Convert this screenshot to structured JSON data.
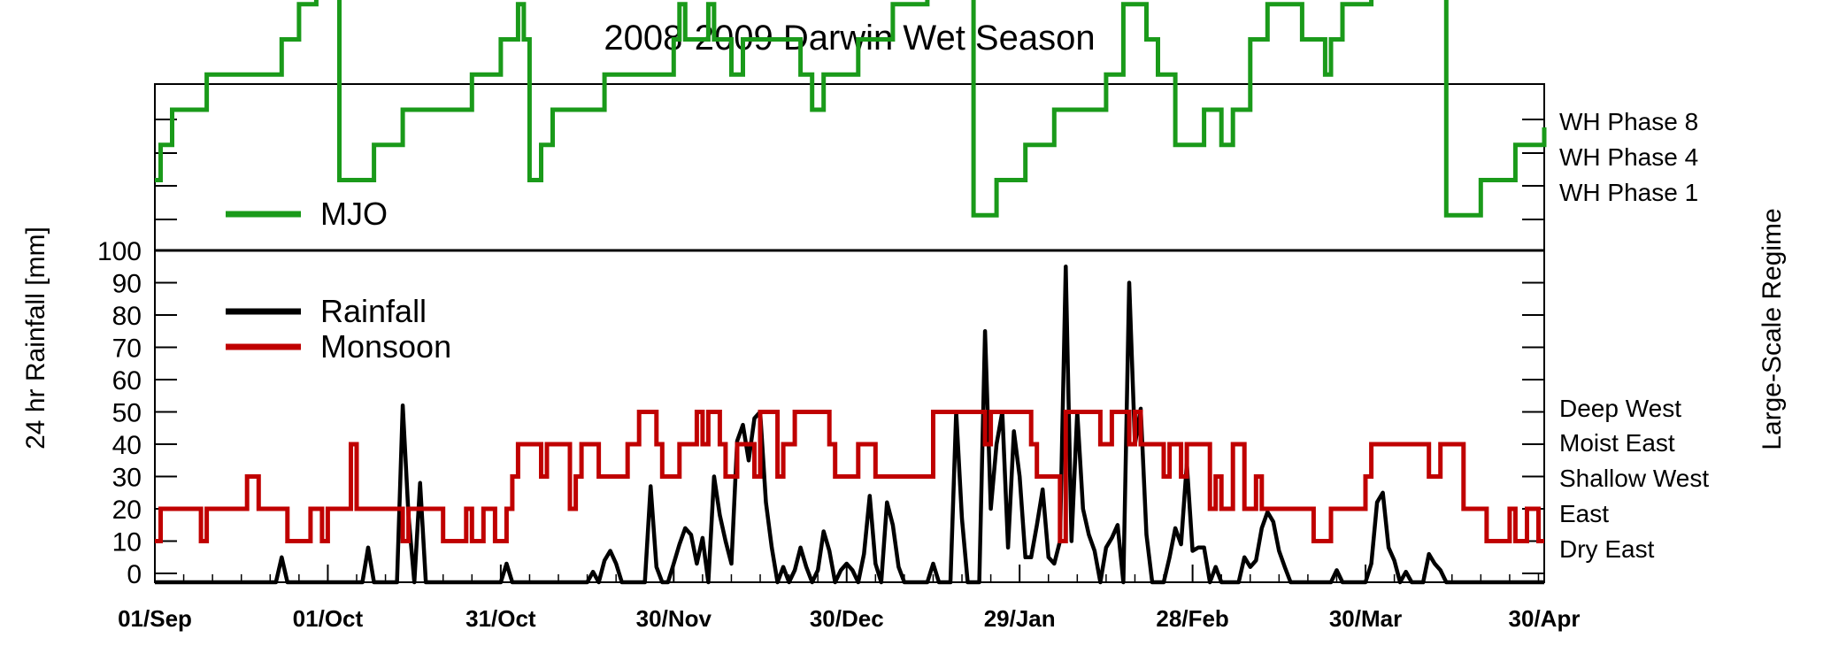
{
  "chart_data": {
    "type": "line",
    "title": "2008-2009 Darwin Wet Season",
    "ylabel": "24 hr Rainfall [mm]",
    "right_label": "Large-Scale Regime",
    "x_ticks": [
      "01/Sep",
      "01/Oct",
      "31/Oct",
      "30/Nov",
      "30/Dec",
      "29/Jan",
      "28/Feb",
      "30/Mar",
      "30/Apr"
    ],
    "x_tick_days": [
      0,
      30,
      60,
      90,
      120,
      150,
      180,
      210,
      241
    ],
    "xlim": [
      0,
      241
    ],
    "y_ticks": [
      "0",
      "10",
      "20",
      "30",
      "40",
      "50",
      "60",
      "70",
      "80",
      "90",
      "100"
    ],
    "ylim": [
      0,
      100
    ],
    "legend": {
      "mjo": "MJO",
      "rainfall": "Rainfall",
      "monsoon": "Monsoon"
    },
    "mjo_labels": [
      "WH Phase 8",
      "WH Phase 4",
      "WH Phase 1"
    ],
    "regime_labels": [
      "Deep West",
      "Moist East",
      "Shallow West",
      "East",
      "Dry East"
    ],
    "colors": {
      "mjo": "#1a9a1a",
      "rainfall": "#000000",
      "monsoon": "#c00000"
    },
    "series": [
      {
        "name": "Rainfall",
        "points": [
          [
            0,
            0
          ],
          [
            21,
            0
          ],
          [
            22,
            5
          ],
          [
            23,
            0
          ],
          [
            36,
            0
          ],
          [
            37,
            8
          ],
          [
            38,
            0
          ],
          [
            42,
            0
          ],
          [
            43,
            52
          ],
          [
            44,
            18
          ],
          [
            45,
            0
          ],
          [
            46,
            28
          ],
          [
            47,
            0
          ],
          [
            60,
            0
          ],
          [
            61,
            3
          ],
          [
            62,
            0
          ],
          [
            75,
            0
          ],
          [
            76,
            0.5
          ],
          [
            77,
            0
          ],
          [
            78,
            4
          ],
          [
            79,
            7
          ],
          [
            80,
            3
          ],
          [
            81,
            0
          ],
          [
            85,
            0
          ],
          [
            86,
            27
          ],
          [
            87,
            2
          ],
          [
            88,
            0
          ],
          [
            89,
            0
          ],
          [
            90,
            3
          ],
          [
            91,
            9
          ],
          [
            92,
            14
          ],
          [
            93,
            12
          ],
          [
            94,
            3
          ],
          [
            95,
            11
          ],
          [
            96,
            0
          ],
          [
            97,
            30
          ],
          [
            98,
            18
          ],
          [
            99,
            10
          ],
          [
            100,
            3
          ],
          [
            101,
            41
          ],
          [
            102,
            46
          ],
          [
            103,
            35
          ],
          [
            104,
            48
          ],
          [
            105,
            50
          ],
          [
            106,
            22
          ],
          [
            107,
            8
          ],
          [
            108,
            0
          ],
          [
            109,
            2
          ],
          [
            110,
            0
          ],
          [
            111,
            1
          ],
          [
            112,
            8
          ],
          [
            113,
            2
          ],
          [
            114,
            0
          ],
          [
            115,
            1
          ],
          [
            116,
            13
          ],
          [
            117,
            7
          ],
          [
            118,
            0
          ],
          [
            119,
            1
          ],
          [
            120,
            3
          ],
          [
            121,
            1
          ],
          [
            122,
            0
          ],
          [
            123,
            6
          ],
          [
            124,
            24
          ],
          [
            125,
            3
          ],
          [
            126,
            0
          ],
          [
            127,
            22
          ],
          [
            128,
            15
          ],
          [
            129,
            2
          ],
          [
            130,
            0
          ],
          [
            134,
            0
          ],
          [
            135,
            3
          ],
          [
            136,
            0
          ],
          [
            138,
            0
          ],
          [
            139,
            50
          ],
          [
            140,
            17
          ],
          [
            141,
            0
          ],
          [
            143,
            0
          ],
          [
            144,
            75
          ],
          [
            145,
            20
          ],
          [
            146,
            40
          ],
          [
            147,
            50
          ],
          [
            148,
            8
          ],
          [
            149,
            44
          ],
          [
            150,
            30
          ],
          [
            151,
            5
          ],
          [
            152,
            5
          ],
          [
            153,
            15
          ],
          [
            154,
            26
          ],
          [
            155,
            5
          ],
          [
            156,
            3
          ],
          [
            157,
            10
          ],
          [
            158,
            95
          ],
          [
            159,
            10
          ],
          [
            160,
            50
          ],
          [
            161,
            20
          ],
          [
            162,
            12
          ],
          [
            163,
            7
          ],
          [
            164,
            0
          ],
          [
            165,
            8
          ],
          [
            166,
            11
          ],
          [
            167,
            15
          ],
          [
            168,
            0
          ],
          [
            169,
            90
          ],
          [
            170,
            40
          ],
          [
            171,
            51
          ],
          [
            172,
            12
          ],
          [
            173,
            0
          ],
          [
            175,
            0
          ],
          [
            176,
            5
          ],
          [
            177,
            14
          ],
          [
            178,
            9
          ],
          [
            179,
            34
          ],
          [
            180,
            7
          ],
          [
            181,
            8
          ],
          [
            182,
            8
          ],
          [
            183,
            0
          ],
          [
            184,
            2
          ],
          [
            185,
            0
          ],
          [
            188,
            0
          ],
          [
            189,
            5
          ],
          [
            190,
            2
          ],
          [
            191,
            4
          ],
          [
            192,
            14
          ],
          [
            193,
            19
          ],
          [
            194,
            16
          ],
          [
            195,
            7
          ],
          [
            196,
            2
          ],
          [
            197,
            0
          ],
          [
            204,
            0
          ],
          [
            205,
            1
          ],
          [
            206,
            0
          ],
          [
            210,
            0
          ],
          [
            211,
            3
          ],
          [
            212,
            22
          ],
          [
            213,
            25
          ],
          [
            214,
            8
          ],
          [
            215,
            4
          ],
          [
            216,
            0
          ],
          [
            217,
            0.5
          ],
          [
            218,
            0
          ],
          [
            220,
            0
          ],
          [
            221,
            6
          ],
          [
            222,
            3
          ],
          [
            223,
            1
          ],
          [
            224,
            0
          ],
          [
            241,
            0
          ]
        ]
      },
      {
        "name": "Monsoon",
        "points": [
          [
            0,
            10
          ],
          [
            1,
            20
          ],
          [
            8,
            10
          ],
          [
            9,
            20
          ],
          [
            16,
            30
          ],
          [
            18,
            20
          ],
          [
            23,
            10
          ],
          [
            27,
            20
          ],
          [
            29,
            10
          ],
          [
            30,
            20
          ],
          [
            34,
            40
          ],
          [
            35,
            20
          ],
          [
            39,
            20
          ],
          [
            40,
            20
          ],
          [
            43,
            10
          ],
          [
            44,
            20
          ],
          [
            46,
            20
          ],
          [
            50,
            10
          ],
          [
            54,
            20
          ],
          [
            55,
            10
          ],
          [
            57,
            20
          ],
          [
            59,
            10
          ],
          [
            61,
            20
          ],
          [
            62,
            30
          ],
          [
            63,
            40
          ],
          [
            67,
            30
          ],
          [
            68,
            40
          ],
          [
            72,
            20
          ],
          [
            73,
            30
          ],
          [
            74,
            40
          ],
          [
            75,
            40
          ],
          [
            77,
            30
          ],
          [
            80,
            30
          ],
          [
            82,
            40
          ],
          [
            84,
            50
          ],
          [
            87,
            40
          ],
          [
            88,
            30
          ],
          [
            91,
            40
          ],
          [
            94,
            50
          ],
          [
            95,
            40
          ],
          [
            96,
            50
          ],
          [
            98,
            40
          ],
          [
            99,
            30
          ],
          [
            101,
            40
          ],
          [
            102,
            40
          ],
          [
            104,
            30
          ],
          [
            105,
            50
          ],
          [
            108,
            30
          ],
          [
            109,
            40
          ],
          [
            111,
            50
          ],
          [
            117,
            40
          ],
          [
            118,
            30
          ],
          [
            122,
            40
          ],
          [
            125,
            30
          ],
          [
            134,
            30
          ],
          [
            135,
            50
          ],
          [
            142,
            50
          ],
          [
            144,
            40
          ],
          [
            145,
            50
          ],
          [
            152,
            40
          ],
          [
            153,
            30
          ],
          [
            157,
            10
          ],
          [
            158,
            50
          ],
          [
            164,
            40
          ],
          [
            166,
            50
          ],
          [
            169,
            40
          ],
          [
            170,
            50
          ],
          [
            171,
            40
          ],
          [
            172,
            40
          ],
          [
            175,
            30
          ],
          [
            176,
            40
          ],
          [
            178,
            30
          ],
          [
            179,
            40
          ],
          [
            182,
            40
          ],
          [
            183,
            20
          ],
          [
            184,
            30
          ],
          [
            185,
            20
          ],
          [
            187,
            40
          ],
          [
            189,
            20
          ],
          [
            191,
            30
          ],
          [
            192,
            20
          ],
          [
            201,
            10
          ],
          [
            204,
            20
          ],
          [
            210,
            30
          ],
          [
            211,
            40
          ],
          [
            221,
            30
          ],
          [
            223,
            40
          ],
          [
            227,
            20
          ],
          [
            231,
            10
          ],
          [
            235,
            20
          ],
          [
            236,
            10
          ],
          [
            238,
            20
          ],
          [
            240,
            10
          ]
        ]
      },
      {
        "name": "MJO",
        "points": [
          [
            0,
            2
          ],
          [
            1,
            3
          ],
          [
            3,
            4
          ],
          [
            9,
            5
          ],
          [
            22,
            6
          ],
          [
            25,
            7
          ],
          [
            28,
            8
          ],
          [
            32,
            2
          ],
          [
            38,
            3
          ],
          [
            43,
            4
          ],
          [
            55,
            5
          ],
          [
            60,
            6
          ],
          [
            63,
            7
          ],
          [
            64,
            6
          ],
          [
            65,
            2
          ],
          [
            67,
            3
          ],
          [
            69,
            4
          ],
          [
            78,
            5
          ],
          [
            90,
            6
          ],
          [
            91,
            7
          ],
          [
            92,
            6
          ],
          [
            95,
            6
          ],
          [
            96,
            7
          ],
          [
            97,
            6
          ],
          [
            100,
            5
          ],
          [
            102,
            6
          ],
          [
            112,
            5
          ],
          [
            114,
            4
          ],
          [
            116,
            5
          ],
          [
            122,
            6
          ],
          [
            128,
            7
          ],
          [
            134,
            8
          ],
          [
            142,
            1
          ],
          [
            146,
            2
          ],
          [
            151,
            3
          ],
          [
            156,
            4
          ],
          [
            165,
            5
          ],
          [
            168,
            7
          ],
          [
            172,
            6
          ],
          [
            174,
            5
          ],
          [
            177,
            3
          ],
          [
            179,
            3
          ],
          [
            182,
            4
          ],
          [
            185,
            3
          ],
          [
            187,
            4
          ],
          [
            190,
            6
          ],
          [
            193,
            7
          ],
          [
            199,
            6
          ],
          [
            203,
            5
          ],
          [
            204,
            6
          ],
          [
            206,
            7
          ],
          [
            211,
            8
          ],
          [
            224,
            1
          ],
          [
            230,
            2
          ],
          [
            236,
            3
          ],
          [
            241,
            3.5
          ]
        ]
      }
    ]
  }
}
